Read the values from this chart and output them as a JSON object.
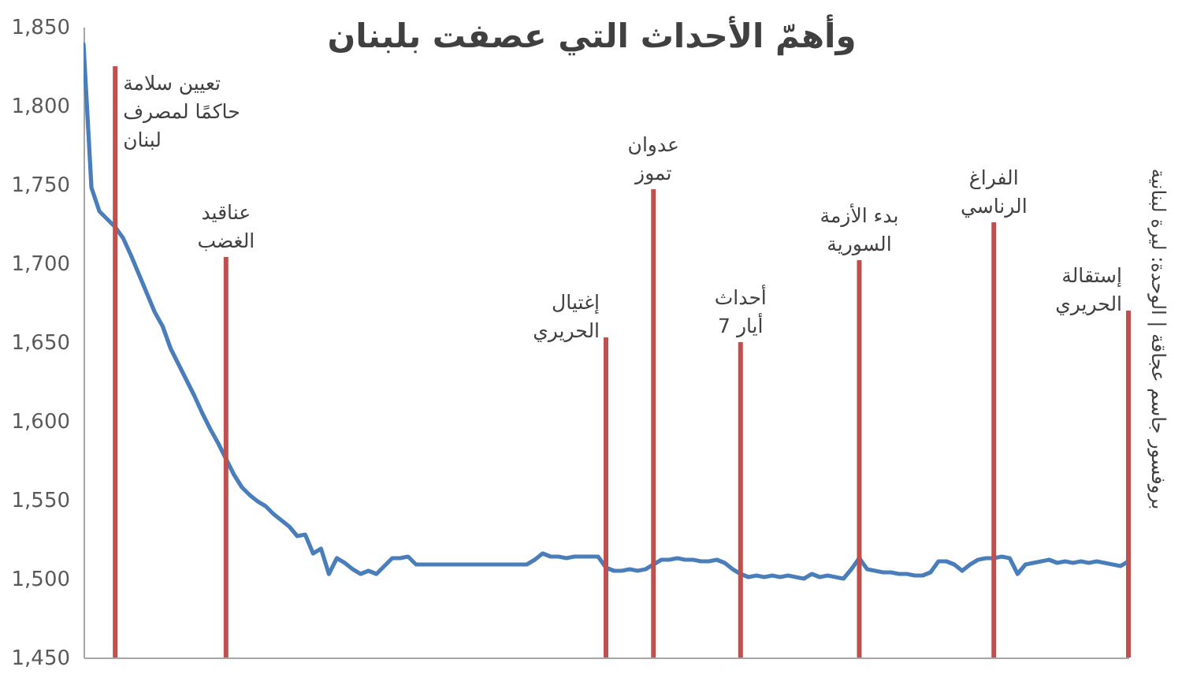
{
  "chart_data": {
    "type": "line",
    "title": "وأهمّ الأحداث التي عصفت بلبنان",
    "categories": [
      null,
      null,
      null,
      null,
      null,
      null,
      null,
      null,
      null,
      null,
      null,
      null,
      null,
      null,
      null,
      null,
      null,
      null,
      null,
      null,
      null,
      null,
      null,
      null,
      null,
      null,
      null,
      null,
      null,
      null,
      null,
      null,
      null,
      null,
      null,
      null,
      null,
      null,
      null,
      null,
      null,
      null,
      null,
      null,
      null,
      null,
      null,
      null,
      null,
      null,
      null,
      null,
      null,
      null,
      null,
      null,
      null,
      null,
      null,
      null,
      null,
      null,
      null,
      null,
      null,
      null,
      null,
      null,
      null,
      null,
      null,
      null,
      null,
      null,
      null,
      null,
      null,
      null,
      null,
      null,
      null,
      null,
      null,
      null,
      null,
      null,
      null,
      null,
      null,
      null,
      null,
      null,
      null,
      null,
      null,
      null,
      null,
      null,
      null,
      null,
      null,
      null,
      null,
      null,
      null,
      null,
      null,
      null,
      null,
      null,
      null,
      null,
      null,
      null,
      null,
      null,
      null,
      null,
      null,
      null,
      null,
      null,
      null,
      null,
      null,
      null,
      null,
      null,
      null,
      null,
      null,
      null,
      null
    ],
    "series": [
      {
        "color": "#4a7ebb",
        "values": [
          1839,
          1748,
          1733,
          1728,
          1723,
          1716,
          1705,
          1693,
          1681,
          1669,
          1660,
          1646,
          1636,
          1626,
          1616,
          1605,
          1595,
          1586,
          1576,
          1566,
          1558,
          1553,
          1549,
          1546,
          1541,
          1537,
          1533,
          1527,
          1528,
          1516,
          1519,
          1503,
          1513,
          1510,
          1506,
          1503,
          1505,
          1503,
          1508,
          1513,
          1513,
          1514,
          1509,
          1509,
          1509,
          1509,
          1509,
          1509,
          1509,
          1509,
          1509,
          1509,
          1509,
          1509,
          1509,
          1509,
          1509,
          1512,
          1516,
          1514,
          1514,
          1513,
          1514,
          1514,
          1514,
          1514,
          1507,
          1505,
          1505,
          1506,
          1505,
          1506,
          1509,
          1512,
          1512,
          1513,
          1512,
          1512,
          1511,
          1511,
          1512,
          1510,
          1506,
          1503,
          1501,
          1502,
          1501,
          1502,
          1501,
          1502,
          1501,
          1500,
          1503,
          1501,
          1502,
          1501,
          1500,
          1506,
          1513,
          1506,
          1505,
          1504,
          1504,
          1503,
          1503,
          1502,
          1502,
          1504,
          1511,
          1511,
          1509,
          1505,
          1509,
          1512,
          1513,
          1513,
          1514,
          1513,
          1503,
          1509,
          1510,
          1511,
          1512,
          1510,
          1511,
          1510,
          1511,
          1510,
          1511,
          1510,
          1509,
          1508,
          1511
        ]
      },
      {
        "type": "bar",
        "color": "#c0504d",
        "values": [
          null,
          null,
          null,
          null,
          1825,
          null,
          null,
          null,
          null,
          null,
          null,
          null,
          null,
          null,
          null,
          null,
          null,
          null,
          1704,
          null,
          null,
          null,
          null,
          null,
          null,
          null,
          null,
          null,
          null,
          null,
          null,
          null,
          null,
          null,
          null,
          null,
          null,
          null,
          null,
          null,
          null,
          null,
          null,
          null,
          null,
          null,
          null,
          null,
          null,
          null,
          null,
          null,
          null,
          null,
          null,
          null,
          null,
          null,
          null,
          null,
          null,
          null,
          null,
          null,
          null,
          null,
          1653,
          null,
          null,
          null,
          null,
          null,
          1747,
          null,
          null,
          null,
          null,
          null,
          null,
          null,
          null,
          null,
          null,
          1650,
          null,
          null,
          null,
          null,
          null,
          null,
          null,
          null,
          null,
          null,
          null,
          null,
          null,
          null,
          1702,
          null,
          null,
          null,
          null,
          null,
          null,
          null,
          null,
          null,
          null,
          null,
          null,
          null,
          null,
          null,
          null,
          1726,
          null,
          null,
          null,
          null,
          null,
          null,
          null,
          null,
          null,
          null,
          null,
          null,
          null,
          null,
          null,
          null,
          1670
        ]
      }
    ],
    "ylim": [
      1450,
      1850
    ],
    "yticks": [
      {
        "value": 1450,
        "label": "1,450"
      },
      {
        "value": 1500,
        "label": "1,500"
      },
      {
        "value": 1550,
        "label": "1,550"
      },
      {
        "value": 1600,
        "label": "1,600"
      },
      {
        "value": 1650,
        "label": "1,650"
      },
      {
        "value": 1700,
        "label": "1,700"
      },
      {
        "value": 1750,
        "label": "1,750"
      },
      {
        "value": 1800,
        "label": "1,800"
      },
      {
        "value": 1850,
        "label": "1,850"
      }
    ],
    "annotations": [
      "تعيين سلامة\nحاكمًا لمصرف\nلبنان",
      {
        "text": "عناقيد\nالغضب",
        "y": 1704
      },
      "إغتيال\nالحريري",
      {
        "text": "عدوان\nتموز",
        "y": 1747
      },
      {
        "text": "أحداث\n7 أيار",
        "y": 1650
      },
      {
        "text": "بدء الأزمة\nالسورية",
        "y": 1702
      },
      {
        "text": "الفراغ\nالرناسي",
        "y": 1726
      },
      "إستقالة\nالحريري",
      "بروفسور جاسم عجاقة | الوحدة: ليرة لبنانية"
    ]
  }
}
